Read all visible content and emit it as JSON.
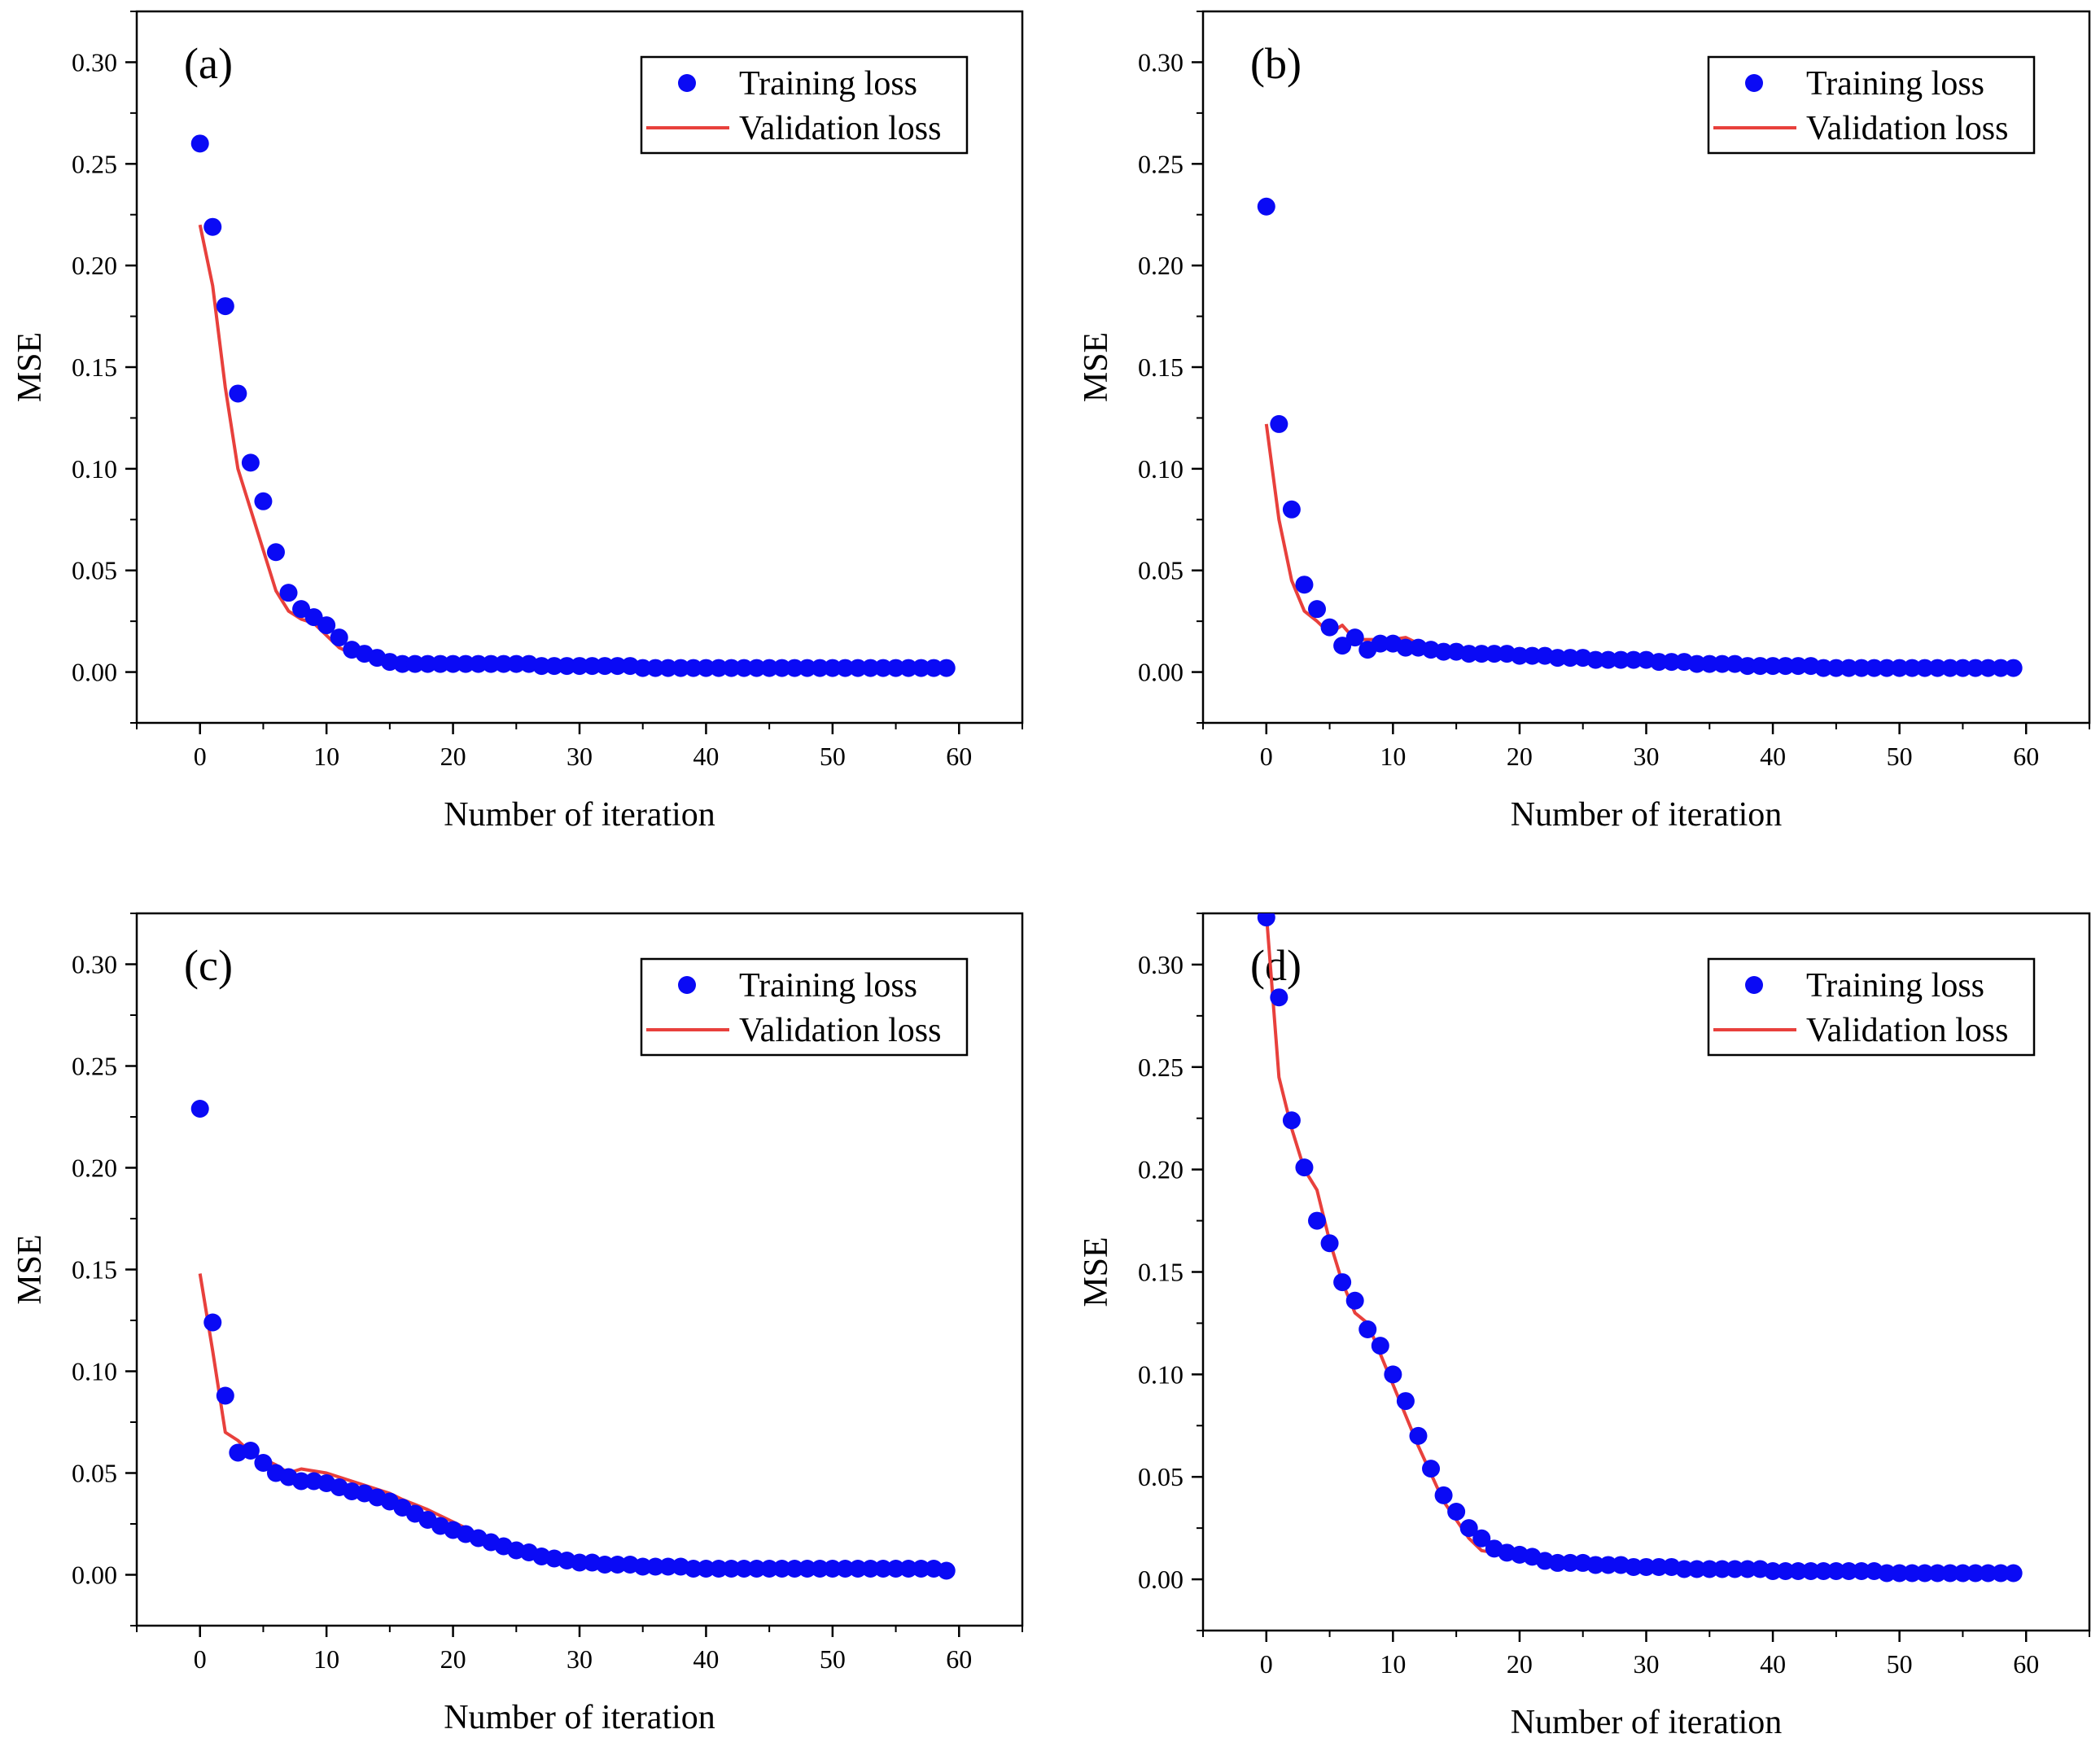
{
  "figure": {
    "panels": [
      "a",
      "b",
      "c",
      "d"
    ]
  },
  "colors": {
    "training": "#0a0af5",
    "validation": "#e8403c",
    "axis": "#000000",
    "background": "#ffffff"
  },
  "chart_data": [
    {
      "id": "a",
      "type": "scatter+line",
      "panel_label": "(a)",
      "xlabel": "Number of iteration",
      "ylabel": "MSE",
      "xlim": [
        -5,
        65
      ],
      "ylim": [
        -0.025,
        0.325
      ],
      "x_ticks": [
        0,
        10,
        20,
        30,
        40,
        50,
        60
      ],
      "x_tick_labels": [
        "0",
        "10",
        "20",
        "30",
        "40",
        "50",
        "60"
      ],
      "y_ticks": [
        0,
        0.05,
        0.1,
        0.15,
        0.2,
        0.25,
        0.3
      ],
      "y_tick_labels": [
        "0.00",
        "0.05",
        "0.10",
        "0.15",
        "0.20",
        "0.25",
        "0.30"
      ],
      "legend": {
        "placement": "top-right",
        "training_label": "Training loss",
        "validation_label": "Validation loss"
      },
      "series": [
        {
          "name": "Training loss",
          "style": "markers",
          "x_start": 0,
          "x_step": 1,
          "values": [
            0.26,
            0.219,
            0.18,
            0.137,
            0.103,
            0.084,
            0.059,
            0.039,
            0.031,
            0.027,
            0.023,
            0.017,
            0.011,
            0.009,
            0.007,
            0.005,
            0.004,
            0.004,
            0.004,
            0.004,
            0.004,
            0.004,
            0.004,
            0.004,
            0.004,
            0.004,
            0.004,
            0.003,
            0.003,
            0.003,
            0.003,
            0.003,
            0.003,
            0.003,
            0.003,
            0.002,
            0.002,
            0.002,
            0.002,
            0.002,
            0.002,
            0.002,
            0.002,
            0.002,
            0.002,
            0.002,
            0.002,
            0.002,
            0.002,
            0.002,
            0.002,
            0.002,
            0.002,
            0.002,
            0.002,
            0.002,
            0.002,
            0.002,
            0.002,
            0.002
          ]
        },
        {
          "name": "Validation loss",
          "style": "line",
          "x": [
            0,
            1,
            2,
            3,
            4,
            5,
            6,
            7,
            8,
            9,
            10,
            11,
            12,
            13,
            14,
            15,
            16,
            20,
            25,
            30,
            35,
            40,
            45,
            50,
            55,
            59
          ],
          "values": [
            0.22,
            0.19,
            0.14,
            0.1,
            0.08,
            0.06,
            0.04,
            0.03,
            0.026,
            0.024,
            0.018,
            0.012,
            0.009,
            0.008,
            0.006,
            0.005,
            0.004,
            0.003,
            0.003,
            0.002,
            0.002,
            0.002,
            0.002,
            0.002,
            0.002,
            0.002
          ]
        }
      ]
    },
    {
      "id": "b",
      "type": "scatter+line",
      "panel_label": "(b)",
      "xlabel": "Number of iteration",
      "ylabel": "MSE",
      "xlim": [
        -5,
        65
      ],
      "ylim": [
        -0.025,
        0.325
      ],
      "x_ticks": [
        0,
        10,
        20,
        30,
        40,
        50,
        60
      ],
      "x_tick_labels": [
        "0",
        "10",
        "20",
        "30",
        "40",
        "50",
        "60"
      ],
      "y_ticks": [
        0,
        0.05,
        0.1,
        0.15,
        0.2,
        0.25,
        0.3
      ],
      "y_tick_labels": [
        "0.00",
        "0.05",
        "0.10",
        "0.15",
        "0.20",
        "0.25",
        "0.30"
      ],
      "legend": {
        "placement": "top-right",
        "training_label": "Training loss",
        "validation_label": "Validation loss"
      },
      "series": [
        {
          "name": "Training loss",
          "style": "markers",
          "x_start": 0,
          "x_step": 1,
          "values": [
            0.229,
            0.122,
            0.08,
            0.043,
            0.031,
            0.022,
            0.013,
            0.017,
            0.011,
            0.014,
            0.014,
            0.012,
            0.012,
            0.011,
            0.01,
            0.01,
            0.009,
            0.009,
            0.009,
            0.009,
            0.008,
            0.008,
            0.008,
            0.007,
            0.007,
            0.007,
            0.006,
            0.006,
            0.006,
            0.006,
            0.006,
            0.005,
            0.005,
            0.005,
            0.004,
            0.004,
            0.004,
            0.004,
            0.003,
            0.003,
            0.003,
            0.003,
            0.003,
            0.003,
            0.002,
            0.002,
            0.002,
            0.002,
            0.002,
            0.002,
            0.002,
            0.002,
            0.002,
            0.002,
            0.002,
            0.002,
            0.002,
            0.002,
            0.002,
            0.002
          ]
        },
        {
          "name": "Validation loss",
          "style": "line",
          "x": [
            0,
            1,
            2,
            3,
            4,
            5,
            6,
            7,
            8,
            9,
            10,
            11,
            12,
            13,
            15,
            20,
            25,
            30,
            35,
            40,
            45,
            50,
            55,
            59
          ],
          "values": [
            0.122,
            0.075,
            0.045,
            0.03,
            0.025,
            0.019,
            0.023,
            0.016,
            0.016,
            0.016,
            0.016,
            0.017,
            0.014,
            0.012,
            0.011,
            0.01,
            0.008,
            0.007,
            0.005,
            0.003,
            0.002,
            0.002,
            0.002,
            0.002
          ]
        }
      ]
    },
    {
      "id": "c",
      "type": "scatter+line",
      "panel_label": "(c)",
      "xlabel": "Number of iteration",
      "ylabel": "MSE",
      "xlim": [
        -5,
        65
      ],
      "ylim": [
        -0.025,
        0.325
      ],
      "x_ticks": [
        0,
        10,
        20,
        30,
        40,
        50,
        60
      ],
      "x_tick_labels": [
        "0",
        "10",
        "20",
        "30",
        "40",
        "50",
        "60"
      ],
      "y_ticks": [
        0,
        0.05,
        0.1,
        0.15,
        0.2,
        0.25,
        0.3
      ],
      "y_tick_labels": [
        "0.00",
        "0.05",
        "0.10",
        "0.15",
        "0.20",
        "0.25",
        "0.30"
      ],
      "legend": {
        "placement": "top-right",
        "training_label": "Training loss",
        "validation_label": "Validation loss"
      },
      "series": [
        {
          "name": "Training loss",
          "style": "markers",
          "x_start": 0,
          "x_step": 1,
          "values": [
            0.229,
            0.124,
            0.088,
            0.06,
            0.061,
            0.055,
            0.05,
            0.048,
            0.046,
            0.046,
            0.045,
            0.043,
            0.041,
            0.04,
            0.038,
            0.036,
            0.033,
            0.03,
            0.027,
            0.024,
            0.022,
            0.02,
            0.018,
            0.016,
            0.014,
            0.012,
            0.011,
            0.009,
            0.008,
            0.007,
            0.006,
            0.006,
            0.005,
            0.005,
            0.005,
            0.004,
            0.004,
            0.004,
            0.004,
            0.003,
            0.003,
            0.003,
            0.003,
            0.003,
            0.003,
            0.003,
            0.003,
            0.003,
            0.003,
            0.003,
            0.003,
            0.003,
            0.003,
            0.003,
            0.003,
            0.003,
            0.003,
            0.003,
            0.003,
            0.002
          ]
        },
        {
          "name": "Validation loss",
          "style": "line",
          "x": [
            0,
            1,
            2,
            3,
            4,
            5,
            6,
            7,
            8,
            9,
            10,
            11,
            12,
            13,
            14,
            15,
            16,
            18,
            20,
            22,
            25,
            28,
            30,
            35,
            40,
            45,
            50,
            55,
            59
          ],
          "values": [
            0.148,
            0.11,
            0.07,
            0.066,
            0.06,
            0.057,
            0.054,
            0.05,
            0.052,
            0.051,
            0.05,
            0.048,
            0.046,
            0.044,
            0.042,
            0.04,
            0.037,
            0.032,
            0.026,
            0.02,
            0.012,
            0.007,
            0.005,
            0.004,
            0.003,
            0.002,
            0.002,
            0.002,
            0.002
          ]
        }
      ]
    },
    {
      "id": "d",
      "type": "scatter+line",
      "panel_label": "(d)",
      "xlabel": "Number of iteration",
      "ylabel": "MSE",
      "xlim": [
        -5,
        65
      ],
      "ylim": [
        -0.025,
        0.325
      ],
      "x_ticks": [
        0,
        10,
        20,
        30,
        40,
        50,
        60
      ],
      "x_tick_labels": [
        "0",
        "10",
        "20",
        "30",
        "40",
        "50",
        "60"
      ],
      "y_ticks": [
        0,
        0.05,
        0.1,
        0.15,
        0.2,
        0.25,
        0.3
      ],
      "y_tick_labels": [
        "0.00",
        "0.05",
        "0.10",
        "0.15",
        "0.20",
        "0.25",
        "0.30"
      ],
      "legend": {
        "placement": "top-right",
        "training_label": "Training loss",
        "validation_label": "Validation loss"
      },
      "series": [
        {
          "name": "Training loss",
          "style": "markers",
          "x_start": 0,
          "x_step": 1,
          "values": [
            0.323,
            0.284,
            0.224,
            0.201,
            0.175,
            0.164,
            0.145,
            0.136,
            0.122,
            0.114,
            0.1,
            0.087,
            0.07,
            0.054,
            0.041,
            0.033,
            0.025,
            0.02,
            0.015,
            0.013,
            0.012,
            0.011,
            0.009,
            0.008,
            0.008,
            0.008,
            0.007,
            0.007,
            0.007,
            0.006,
            0.006,
            0.006,
            0.006,
            0.005,
            0.005,
            0.005,
            0.005,
            0.005,
            0.005,
            0.005,
            0.004,
            0.004,
            0.004,
            0.004,
            0.004,
            0.004,
            0.004,
            0.004,
            0.004,
            0.003,
            0.003,
            0.003,
            0.003,
            0.003,
            0.003,
            0.003,
            0.003,
            0.003,
            0.003,
            0.003
          ]
        },
        {
          "name": "Validation loss",
          "style": "line",
          "x": [
            0,
            1,
            2,
            3,
            4,
            5,
            6,
            7,
            8,
            9,
            10,
            12,
            14,
            16,
            17,
            18,
            20,
            22,
            25,
            30,
            40,
            50,
            59
          ],
          "values": [
            0.325,
            0.245,
            0.22,
            0.2,
            0.19,
            0.165,
            0.145,
            0.13,
            0.125,
            0.11,
            0.095,
            0.065,
            0.038,
            0.02,
            0.014,
            0.013,
            0.011,
            0.008,
            0.007,
            0.006,
            0.004,
            0.003,
            0.003
          ]
        }
      ]
    }
  ]
}
